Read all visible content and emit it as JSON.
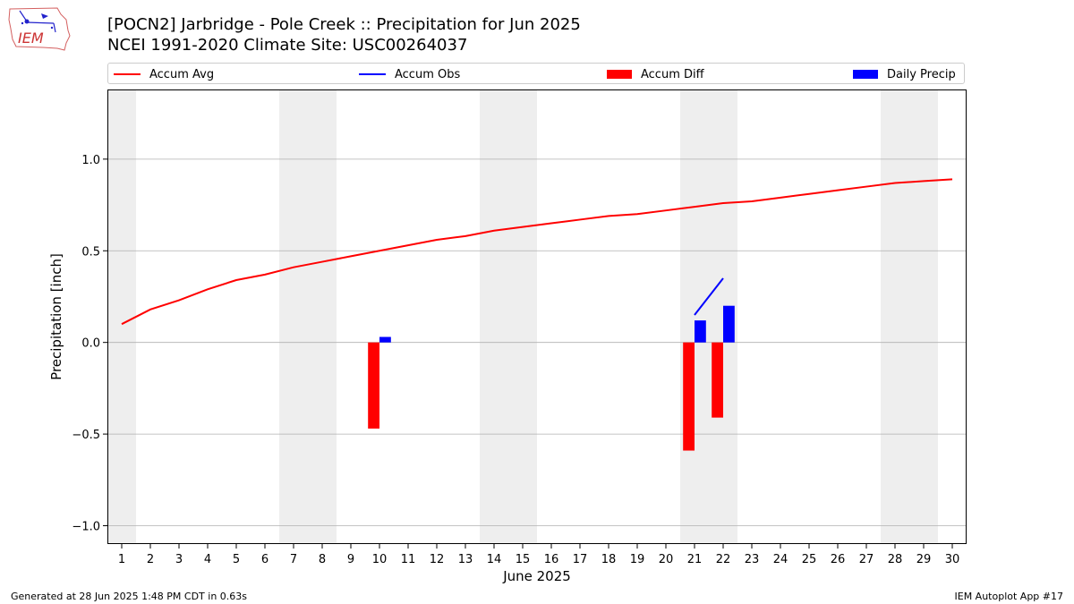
{
  "header": {
    "title_line1": "[POCN2] Jarbridge - Pole Creek :: Precipitation for Jun 2025",
    "title_line2": "NCEI 1991-2020 Climate Site: USC00264037",
    "logo_text": "IEM"
  },
  "legend": {
    "accum_avg": "Accum Avg",
    "accum_obs": "Accum Obs",
    "accum_diff": "Accum Diff",
    "daily_precip": "Daily Precip"
  },
  "colors": {
    "avg": "#ff0000",
    "obs": "#0000ff",
    "diff": "#ff0000",
    "daily": "#0000ff",
    "weekend_shade": "#eeeeee",
    "grid": "#b0b0b0"
  },
  "chart_data": {
    "type": "bar",
    "xlabel": "June 2025",
    "ylabel": "Precipitation [inch]",
    "xlim": [
      0.5,
      30.5
    ],
    "ylim": [
      -1.1,
      1.38
    ],
    "x_ticks": [
      1,
      2,
      3,
      4,
      5,
      6,
      7,
      8,
      9,
      10,
      11,
      12,
      13,
      14,
      15,
      16,
      17,
      18,
      19,
      20,
      21,
      22,
      23,
      24,
      25,
      26,
      27,
      28,
      29,
      30
    ],
    "y_ticks": [
      -1.0,
      -0.5,
      0.0,
      0.5,
      1.0
    ],
    "y_tick_labels": [
      "−1.0",
      "−0.5",
      "0.0",
      "0.5",
      "1.0"
    ],
    "grid": "y",
    "weekend_shading": [
      [
        0.5,
        1.5
      ],
      [
        6.5,
        8.5
      ],
      [
        13.5,
        15.5
      ],
      [
        20.5,
        22.5
      ],
      [
        27.5,
        29.5
      ]
    ],
    "series": [
      {
        "name": "Accum Avg",
        "type": "line",
        "x": [
          1,
          2,
          3,
          4,
          5,
          6,
          7,
          8,
          9,
          10,
          11,
          12,
          13,
          14,
          15,
          16,
          17,
          18,
          19,
          20,
          21,
          22,
          23,
          24,
          25,
          26,
          27,
          28,
          29,
          30
        ],
        "values": [
          0.1,
          0.18,
          0.23,
          0.29,
          0.34,
          0.37,
          0.41,
          0.44,
          0.47,
          0.5,
          0.53,
          0.56,
          0.58,
          0.61,
          0.63,
          0.65,
          0.67,
          0.69,
          0.7,
          0.72,
          0.74,
          0.76,
          0.77,
          0.79,
          0.81,
          0.83,
          0.85,
          0.87,
          0.88,
          0.89
        ]
      },
      {
        "name": "Accum Obs",
        "type": "line",
        "x": [
          21,
          22
        ],
        "values": [
          0.15,
          0.35
        ]
      },
      {
        "name": "Accum Diff",
        "type": "bar",
        "x": [
          10,
          21,
          22
        ],
        "values": [
          -0.47,
          -0.59,
          -0.41
        ]
      },
      {
        "name": "Daily Precip",
        "type": "bar",
        "x": [
          10,
          21,
          22
        ],
        "values": [
          0.03,
          0.12,
          0.2
        ]
      }
    ]
  },
  "footer": {
    "left": "Generated at 28 Jun 2025 1:48 PM CDT in 0.63s",
    "right": "IEM Autoplot App #17"
  }
}
